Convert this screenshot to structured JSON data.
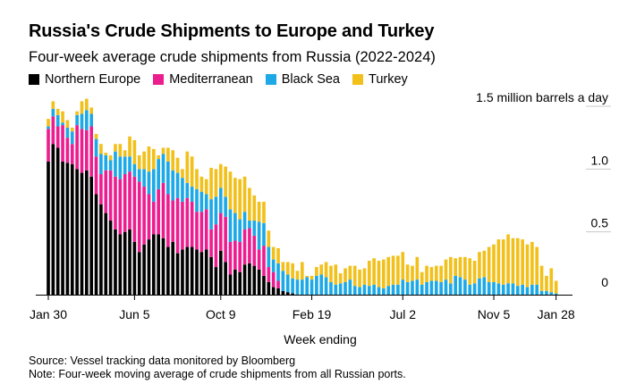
{
  "colors": {
    "northern_europe": "#000000",
    "mediterranean": "#ec1e8f",
    "black_sea": "#1da8e6",
    "turkey": "#f2c01a",
    "axis": "#000000",
    "gridline": "#c8c8c8"
  },
  "chart_data": {
    "type": "bar",
    "stacked": true,
    "title": "Russia's Crude Shipments to Europe and Turkey",
    "subtitle": "Four-week average crude shipments from Russia (2022-2024)",
    "xlabel": "Week ending",
    "ylabel": "",
    "y_unit_label": "1.5 million barrels a day",
    "y_tick_labels": [
      "1.0",
      "0.5",
      "0"
    ],
    "y_ticks": [
      1.5,
      1.0,
      0.5,
      0
    ],
    "ylim": [
      0,
      1.55
    ],
    "x_tick_labels": [
      "Jan 30",
      "Jun 5",
      "Oct 9",
      "Feb 19",
      "Jul 2",
      "Nov 5",
      "Jan 28"
    ],
    "x_tick_index": [
      0,
      18,
      36,
      55,
      74,
      93,
      106
    ],
    "grid": true,
    "legend_position": "top-left",
    "series": [
      {
        "name": "Northern Europe",
        "values": [
          1.06,
          1.2,
          1.17,
          1.06,
          1.05,
          1.04,
          1.0,
          0.97,
          0.99,
          0.94,
          0.8,
          0.72,
          0.65,
          0.59,
          0.52,
          0.48,
          0.5,
          0.52,
          0.42,
          0.34,
          0.4,
          0.44,
          0.48,
          0.48,
          0.45,
          0.38,
          0.42,
          0.33,
          0.36,
          0.38,
          0.38,
          0.36,
          0.34,
          0.36,
          0.3,
          0.22,
          0.35,
          0.26,
          0.16,
          0.2,
          0.18,
          0.24,
          0.25,
          0.23,
          0.2,
          0.15,
          0.1,
          0.06,
          0.05,
          0.03,
          0.02,
          0.01,
          0,
          0,
          0,
          0,
          0,
          0,
          0,
          0,
          0,
          0,
          0,
          0,
          0,
          0,
          0,
          0,
          0,
          0,
          0,
          0,
          0,
          0,
          0,
          0,
          0,
          0,
          0,
          0,
          0,
          0,
          0,
          0,
          0,
          0,
          0,
          0,
          0,
          0,
          0,
          0,
          0,
          0,
          0,
          0,
          0,
          0,
          0,
          0,
          0,
          0,
          0,
          0,
          0,
          0,
          0,
          0
        ]
      },
      {
        "name": "Mediterranean",
        "values": [
          0.26,
          0.22,
          0.17,
          0.29,
          0.2,
          0.16,
          0.35,
          0.35,
          0.32,
          0.4,
          0.3,
          0.24,
          0.34,
          0.4,
          0.42,
          0.44,
          0.46,
          0.46,
          0.52,
          0.56,
          0.46,
          0.36,
          0.26,
          0.36,
          0.44,
          0.42,
          0.33,
          0.44,
          0.38,
          0.39,
          0.36,
          0.3,
          0.32,
          0.32,
          0.22,
          0.34,
          0.3,
          0.36,
          0.26,
          0.23,
          0.24,
          0.28,
          0.28,
          0.24,
          0.16,
          0.24,
          0.12,
          0.12,
          0.06,
          0,
          0,
          0,
          0,
          0,
          0,
          0,
          0,
          0,
          0,
          0,
          0,
          0,
          0,
          0,
          0,
          0,
          0,
          0,
          0,
          0,
          0,
          0,
          0,
          0,
          0,
          0,
          0,
          0,
          0,
          0,
          0,
          0,
          0,
          0,
          0,
          0,
          0,
          0,
          0,
          0,
          0,
          0,
          0,
          0,
          0,
          0,
          0,
          0,
          0,
          0,
          0,
          0,
          0,
          0,
          0,
          0
        ]
      },
      {
        "name": "Black Sea",
        "values": [
          0.02,
          0.06,
          0.09,
          0.02,
          0.08,
          0.1,
          0.08,
          0.12,
          0.16,
          0.1,
          0.14,
          0.16,
          0.12,
          0.08,
          0.2,
          0.18,
          0.14,
          0.12,
          0.1,
          0.1,
          0.14,
          0.18,
          0.26,
          0.24,
          0.23,
          0.26,
          0.24,
          0.2,
          0.19,
          0.12,
          0.12,
          0.18,
          0.16,
          0.12,
          0.24,
          0.22,
          0.2,
          0.16,
          0.26,
          0.22,
          0.18,
          0.14,
          0.06,
          0.12,
          0.22,
          0.18,
          0.16,
          0.1,
          0.14,
          0.16,
          0.14,
          0.12,
          0.12,
          0.12,
          0.14,
          0.12,
          0.15,
          0.16,
          0.14,
          0.1,
          0.08,
          0.09,
          0.1,
          0.12,
          0.07,
          0.06,
          0.08,
          0.07,
          0.08,
          0.06,
          0.05,
          0.07,
          0.08,
          0.08,
          0.12,
          0.1,
          0.11,
          0.12,
          0.08,
          0.1,
          0.11,
          0.11,
          0.1,
          0.12,
          0.09,
          0.15,
          0.14,
          0.12,
          0.08,
          0.09,
          0.13,
          0.14,
          0.1,
          0.1,
          0.09,
          0.08,
          0.09,
          0.09,
          0.07,
          0.08,
          0.06,
          0.08,
          0.08,
          0.03,
          0.03,
          0.02,
          0.01
        ]
      },
      {
        "name": "Turkey",
        "values": [
          0.06,
          0.06,
          0.05,
          0.09,
          0.06,
          0.03,
          0.03,
          0.1,
          0.09,
          0.05,
          0.04,
          0.08,
          0.02,
          0.04,
          0.06,
          0.1,
          0.05,
          0.16,
          0.19,
          0.11,
          0.14,
          0.2,
          0.16,
          0.03,
          0.05,
          0.11,
          0.16,
          0.12,
          0.07,
          0.25,
          0.24,
          0.16,
          0.12,
          0.12,
          0.25,
          0.22,
          0.19,
          0.24,
          0.3,
          0.28,
          0.32,
          0.28,
          0.26,
          0.2,
          0.16,
          0.17,
          0.13,
          0.1,
          0.12,
          0.07,
          0.1,
          0.12,
          0.07,
          0.14,
          0.01,
          0.03,
          0.07,
          0.08,
          0.12,
          0.13,
          0.16,
          0.08,
          0.11,
          0.11,
          0.16,
          0.14,
          0.13,
          0.2,
          0.21,
          0.21,
          0.23,
          0.23,
          0.23,
          0.23,
          0.22,
          0.14,
          0.12,
          0.18,
          0.1,
          0.13,
          0.11,
          0.12,
          0.13,
          0.16,
          0.21,
          0.14,
          0.16,
          0.18,
          0.21,
          0.18,
          0.21,
          0.21,
          0.28,
          0.3,
          0.35,
          0.36,
          0.39,
          0.36,
          0.38,
          0.36,
          0.34,
          0.34,
          0.3,
          0.2,
          0.12,
          0.19,
          0.1
        ]
      }
    ]
  },
  "footer": {
    "source": "Source: Vessel tracking data monitored by Bloomberg",
    "note": "Note: Four-week moving average of crude shipments from all Russian ports."
  }
}
